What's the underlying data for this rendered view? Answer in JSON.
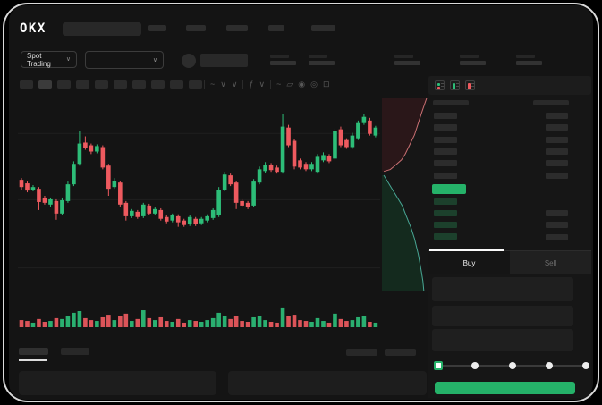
{
  "header": {
    "logo_text": "OKX",
    "nav_placeholder_count": 5
  },
  "market_bar": {
    "market_type_selector": {
      "label": "Spot Trading",
      "chevron": "∨"
    },
    "pair_selector": {
      "chevron": "∨"
    },
    "stat_placeholder_count": 5
  },
  "chart_toolbar": {
    "timeframe_placeholder_count": 10,
    "active_timeframe_index": 1,
    "icons": [
      {
        "name": "separator",
        "glyph": ""
      },
      {
        "name": "candle-style-icon",
        "glyph": "~"
      },
      {
        "name": "candle-style-chevron-icon",
        "glyph": "∨"
      },
      {
        "name": "layout-chevron-icon",
        "glyph": "∨"
      },
      {
        "name": "separator",
        "glyph": ""
      },
      {
        "name": "indicators-icon",
        "glyph": "ƒ"
      },
      {
        "name": "indicators-chevron-icon",
        "glyph": "∨"
      },
      {
        "name": "separator",
        "glyph": ""
      },
      {
        "name": "overlay-line-icon",
        "glyph": "~"
      },
      {
        "name": "compare-icon",
        "glyph": "▱"
      },
      {
        "name": "screenshot-icon",
        "glyph": "◉"
      },
      {
        "name": "chart-settings-icon",
        "glyph": "◎"
      },
      {
        "name": "fullscreen-icon",
        "glyph": "⊡"
      }
    ]
  },
  "orderbook": {
    "view_mode_icons": [
      "combined-book-icon",
      "bids-only-icon",
      "asks-only-icon"
    ],
    "rows": {
      "left_top_count": 6,
      "left_green_count": 4,
      "right_top_count": 6,
      "right_bottom_count": 3
    }
  },
  "trade_panel": {
    "tabs": [
      {
        "label": "Buy",
        "active": true
      },
      {
        "label": "Sell",
        "active": false
      }
    ],
    "field_count": 3,
    "slider": {
      "stop_count": 5,
      "active_stop_index": 0
    },
    "submit_button_label": ""
  },
  "bottom_bar": {
    "tab_placeholder_count": 2,
    "active_tab_index": 0,
    "right_button_count": 2,
    "panel_count": 2
  },
  "colors": {
    "up_green": "#2dbd78",
    "down_red": "#ee5a5f",
    "accent_green": "#25b269",
    "grid": "#1f1f1f",
    "depth_ask_line": "#c96f72",
    "depth_ask_fill": "#2a1719",
    "depth_bid_line": "#48a694",
    "depth_bid_fill": "#142a1e"
  },
  "chart_data": {
    "type": "candlestick",
    "title": "",
    "xlabel": "",
    "ylabel": "",
    "ylim": [
      0,
      100
    ],
    "grid": true,
    "gridlines_price": [
      13,
      48,
      82
    ],
    "axis_labels_visible": false,
    "ohlc": [
      [
        58.2,
        59.1,
        53.2,
        54.5
      ],
      [
        56.4,
        57.3,
        51.8,
        52.7
      ],
      [
        53.2,
        55.5,
        52.3,
        54.5
      ],
      [
        53.6,
        54.5,
        42.7,
        46.8
      ],
      [
        49.1,
        50,
        45.5,
        46.4
      ],
      [
        45.5,
        49.1,
        44.5,
        48.2
      ],
      [
        47.3,
        48.2,
        37.7,
        40.9
      ],
      [
        40.9,
        49.1,
        40,
        47.7
      ],
      [
        47.3,
        57.3,
        46.4,
        55.9
      ],
      [
        55.9,
        67.7,
        55,
        66.4
      ],
      [
        66.4,
        83.2,
        65.5,
        76.8
      ],
      [
        77.3,
        80.5,
        73.6,
        74.5
      ],
      [
        75.9,
        76.8,
        71.4,
        72.7
      ],
      [
        72.7,
        76.4,
        71.8,
        75.5
      ],
      [
        75,
        75.9,
        63.6,
        64.5
      ],
      [
        65.5,
        66.4,
        50,
        53.6
      ],
      [
        54.5,
        59.1,
        53.6,
        57.7
      ],
      [
        56.8,
        57.7,
        44.1,
        45.5
      ],
      [
        46.4,
        47.3,
        37.3,
        39.5
      ],
      [
        39.5,
        43.2,
        38.6,
        42.3
      ],
      [
        41.8,
        42.7,
        38.2,
        39.1
      ],
      [
        39.5,
        46.4,
        38.6,
        45.5
      ],
      [
        45,
        45.9,
        40,
        40.9
      ],
      [
        40.9,
        44.1,
        40,
        43.2
      ],
      [
        42.7,
        43.6,
        37.3,
        38.2
      ],
      [
        39.1,
        40,
        35.9,
        36.8
      ],
      [
        37.3,
        40.9,
        36.4,
        40
      ],
      [
        39.5,
        40.5,
        34.1,
        36.4
      ],
      [
        37.3,
        38.2,
        34.1,
        35
      ],
      [
        35.5,
        40,
        34.5,
        39.1
      ],
      [
        38.2,
        39.1,
        34.5,
        35.5
      ],
      [
        35.9,
        39.1,
        35,
        38.2
      ],
      [
        37.3,
        40.5,
        36.4,
        39.5
      ],
      [
        38.6,
        43.6,
        37.7,
        42.7
      ],
      [
        40,
        54.5,
        39.1,
        53.2
      ],
      [
        53.2,
        62.3,
        52.3,
        60.9
      ],
      [
        60.5,
        61.4,
        55,
        55.9
      ],
      [
        56.8,
        57.7,
        43.2,
        46.4
      ],
      [
        47.3,
        48.2,
        44.1,
        45
      ],
      [
        46.4,
        47.3,
        43.2,
        44.1
      ],
      [
        45,
        58.6,
        44.1,
        57.3
      ],
      [
        56.8,
        65,
        55.9,
        63.6
      ],
      [
        62.7,
        67.3,
        61.8,
        65.9
      ],
      [
        65.9,
        66.8,
        62.3,
        63.2
      ],
      [
        64.5,
        65.5,
        61.4,
        62.3
      ],
      [
        62.3,
        91.8,
        61.4,
        85.5
      ],
      [
        85,
        86.4,
        75,
        75.9
      ],
      [
        78.2,
        79.1,
        63.6,
        65
      ],
      [
        68.2,
        69.1,
        63.6,
        64.5
      ],
      [
        66.4,
        67.3,
        62.7,
        63.6
      ],
      [
        63.6,
        67.3,
        62.7,
        66.4
      ],
      [
        62.3,
        71.4,
        61.4,
        70
      ],
      [
        68.2,
        72.3,
        67.3,
        70.9
      ],
      [
        70.5,
        71.4,
        66.8,
        67.7
      ],
      [
        69.1,
        84.5,
        68.2,
        83.2
      ],
      [
        84.1,
        85.5,
        75,
        75.9
      ],
      [
        78.6,
        79.5,
        74.1,
        75
      ],
      [
        75,
        82.3,
        74.1,
        80.9
      ],
      [
        79.5,
        88.6,
        78.6,
        87.3
      ],
      [
        87.3,
        91.8,
        86.4,
        90.5
      ],
      [
        88.6,
        90,
        80.9,
        81.8
      ],
      [
        80.9,
        85.9,
        80,
        85
      ]
    ],
    "volume": [
      33,
      29,
      21,
      38,
      25,
      29,
      42,
      38,
      54,
      67,
      75,
      42,
      33,
      29,
      46,
      58,
      33,
      50,
      63,
      29,
      38,
      79,
      42,
      33,
      46,
      29,
      25,
      38,
      21,
      33,
      29,
      25,
      33,
      42,
      67,
      50,
      38,
      54,
      29,
      25,
      46,
      50,
      33,
      25,
      21,
      92,
      50,
      58,
      33,
      29,
      25,
      42,
      29,
      21,
      63,
      38,
      29,
      33,
      46,
      54,
      25,
      21
    ],
    "depth_profile": {
      "asks": [
        [
          96,
          0
        ],
        [
          86,
          7
        ],
        [
          78,
          13
        ],
        [
          70,
          19
        ],
        [
          58,
          25
        ],
        [
          50,
          29
        ],
        [
          42,
          32
        ],
        [
          28,
          35
        ],
        [
          18,
          37
        ],
        [
          4,
          38
        ]
      ],
      "bids": [
        [
          4,
          40
        ],
        [
          14,
          44
        ],
        [
          24,
          48
        ],
        [
          34,
          52
        ],
        [
          44,
          56
        ],
        [
          52,
          61
        ],
        [
          62,
          67
        ],
        [
          70,
          73
        ],
        [
          78,
          81
        ],
        [
          84,
          89
        ],
        [
          88,
          95
        ],
        [
          90,
          100
        ]
      ]
    }
  }
}
